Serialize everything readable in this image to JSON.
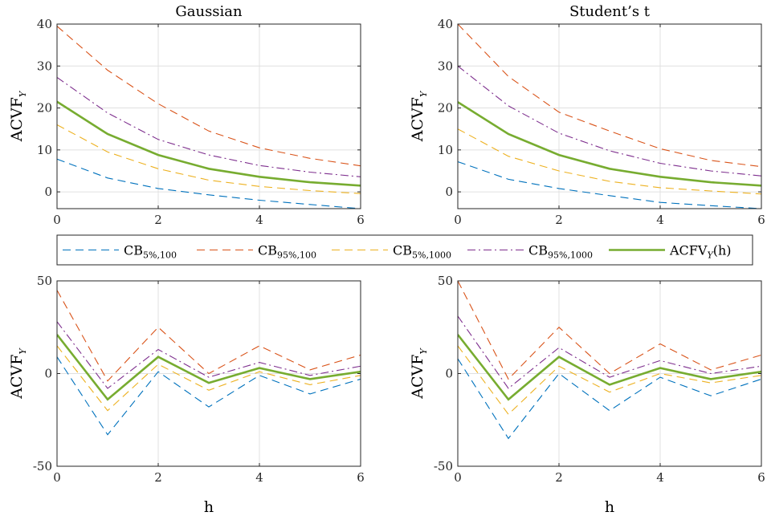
{
  "colors": {
    "cb5_100": "#0072BD",
    "cb95_100": "#D95319",
    "cb5_1000": "#EDB120",
    "cb95_1000": "#7E2F8E",
    "acvf": "#77AC30",
    "grid": "#e0e0e0",
    "axis": "#262626"
  },
  "legend": {
    "cb5_100": {
      "base": "CB",
      "sub": "5%,100"
    },
    "cb95_100": {
      "base": "CB",
      "sub": "95%,100"
    },
    "cb5_1000": {
      "base": "CB",
      "sub": "5%,1000"
    },
    "cb95_1000": {
      "base": "CB",
      "sub": "95%,1000"
    },
    "acvf": {
      "base": "ACFV",
      "sub": "Y",
      "tail": "(h)"
    }
  },
  "chart_data": [
    {
      "type": "line",
      "title": "Gaussian",
      "xlabel": "",
      "ylabel": {
        "base": "ACVF",
        "sub": "Y"
      },
      "xlim": [
        0,
        6
      ],
      "ylim": [
        -4,
        40
      ],
      "xticks": [
        0,
        2,
        4,
        6
      ],
      "yticks": [
        0,
        10,
        20,
        30,
        40
      ],
      "grid": true,
      "x": [
        0,
        1,
        2,
        3,
        4,
        5,
        6
      ],
      "series": [
        {
          "key": "cb5_100",
          "values": [
            7.8,
            3.3,
            0.8,
            -0.7,
            -2.0,
            -3.0,
            -4.0
          ]
        },
        {
          "key": "cb95_100",
          "values": [
            39.5,
            29.0,
            21.0,
            14.5,
            10.5,
            8.0,
            6.2
          ]
        },
        {
          "key": "cb5_1000",
          "values": [
            16.0,
            9.5,
            5.5,
            2.8,
            1.3,
            0.3,
            -0.4
          ]
        },
        {
          "key": "cb95_1000",
          "values": [
            27.3,
            18.8,
            12.5,
            8.8,
            6.3,
            4.7,
            3.6
          ]
        },
        {
          "key": "acvf",
          "values": [
            21.5,
            13.8,
            8.8,
            5.5,
            3.6,
            2.3,
            1.5
          ]
        }
      ]
    },
    {
      "type": "line",
      "title": "Student’s t",
      "xlabel": "",
      "ylabel": {
        "base": "ACVF",
        "sub": "Y"
      },
      "xlim": [
        0,
        6
      ],
      "ylim": [
        -4,
        40
      ],
      "xticks": [
        0,
        2,
        4,
        6
      ],
      "yticks": [
        0,
        10,
        20,
        30,
        40
      ],
      "grid": true,
      "x": [
        0,
        1,
        2,
        3,
        4,
        5,
        6
      ],
      "series": [
        {
          "key": "cb5_100",
          "values": [
            7.2,
            3.0,
            0.8,
            -0.9,
            -2.5,
            -3.3,
            -4.0
          ]
        },
        {
          "key": "cb95_100",
          "values": [
            40.0,
            27.5,
            19.0,
            14.5,
            10.3,
            7.5,
            6.0
          ]
        },
        {
          "key": "cb5_1000",
          "values": [
            15.0,
            8.5,
            5.0,
            2.5,
            1.0,
            0.2,
            -0.5
          ]
        },
        {
          "key": "cb95_1000",
          "values": [
            30.0,
            20.5,
            14.0,
            9.8,
            6.8,
            5.0,
            3.8
          ]
        },
        {
          "key": "acvf",
          "values": [
            21.4,
            13.8,
            8.8,
            5.5,
            3.6,
            2.3,
            1.5
          ]
        }
      ]
    },
    {
      "type": "line",
      "title": "",
      "xlabel": "h",
      "ylabel": {
        "base": "ACVF",
        "sub": "Y"
      },
      "xlim": [
        0,
        6
      ],
      "ylim": [
        -50,
        50
      ],
      "xticks": [
        0,
        2,
        4,
        6
      ],
      "yticks": [
        -50,
        0,
        50
      ],
      "grid": true,
      "x": [
        0,
        1,
        2,
        3,
        4,
        5,
        6
      ],
      "series": [
        {
          "key": "cb5_100",
          "values": [
            9,
            -33,
            1,
            -18,
            -1,
            -11,
            -3
          ]
        },
        {
          "key": "cb95_100",
          "values": [
            45,
            -4,
            25,
            0,
            15,
            2,
            10
          ]
        },
        {
          "key": "cb5_1000",
          "values": [
            15,
            -20,
            5,
            -9,
            1,
            -6,
            -1
          ]
        },
        {
          "key": "cb95_1000",
          "values": [
            28,
            -8,
            13,
            -2,
            6,
            -1,
            4
          ]
        },
        {
          "key": "acvf",
          "values": [
            21,
            -14,
            9,
            -5,
            3,
            -3,
            1
          ]
        }
      ]
    },
    {
      "type": "line",
      "title": "",
      "xlabel": "h",
      "ylabel": {
        "base": "ACVF",
        "sub": "Y"
      },
      "xlim": [
        0,
        6
      ],
      "ylim": [
        -50,
        50
      ],
      "xticks": [
        0,
        2,
        4,
        6
      ],
      "yticks": [
        -50,
        0,
        50
      ],
      "grid": true,
      "x": [
        0,
        1,
        2,
        3,
        4,
        5,
        6
      ],
      "series": [
        {
          "key": "cb5_100",
          "values": [
            8,
            -35,
            0,
            -20,
            -2,
            -12,
            -3
          ]
        },
        {
          "key": "cb95_100",
          "values": [
            50,
            -3,
            25,
            0,
            16,
            2,
            10
          ]
        },
        {
          "key": "cb5_1000",
          "values": [
            15,
            -22,
            4,
            -10,
            0,
            -5,
            -1
          ]
        },
        {
          "key": "cb95_1000",
          "values": [
            31,
            -8,
            14,
            -2,
            7,
            0,
            4
          ]
        },
        {
          "key": "acvf",
          "values": [
            21,
            -14,
            9,
            -6,
            3,
            -3,
            1
          ]
        }
      ]
    }
  ]
}
